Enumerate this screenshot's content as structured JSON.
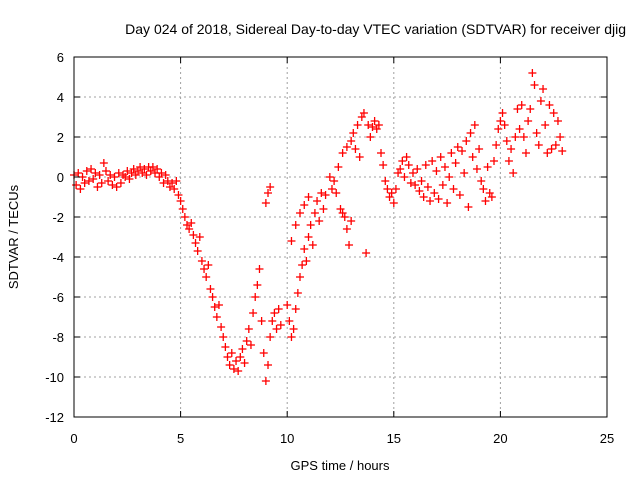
{
  "chart_data": {
    "type": "scatter",
    "title": "Day 024 of 2018, Sidereal Day-to-day VTEC variation (SDTVAR) for receiver djig",
    "xlabel": "GPS time / hours",
    "ylabel": "SDTVAR / TECUs",
    "xlim": [
      0,
      25
    ],
    "ylim": [
      -12,
      6
    ],
    "xticks": [
      0,
      5,
      10,
      15,
      20,
      25
    ],
    "yticks": [
      -12,
      -10,
      -8,
      -6,
      -4,
      -2,
      0,
      2,
      4,
      6
    ],
    "grid": true,
    "marker": "+",
    "series": [
      {
        "color": "#ff0000",
        "points": [
          [
            0.0,
            0.1
          ],
          [
            0.1,
            -0.4
          ],
          [
            0.2,
            0.2
          ],
          [
            0.3,
            -0.6
          ],
          [
            0.4,
            0.0
          ],
          [
            0.5,
            -0.3
          ],
          [
            0.6,
            0.3
          ],
          [
            0.7,
            -0.2
          ],
          [
            0.8,
            0.4
          ],
          [
            0.9,
            -0.1
          ],
          [
            1.0,
            0.2
          ],
          [
            1.1,
            -0.5
          ],
          [
            1.2,
            0.1
          ],
          [
            1.3,
            -0.3
          ],
          [
            1.4,
            0.7
          ],
          [
            1.5,
            0.3
          ],
          [
            1.6,
            -0.2
          ],
          [
            1.7,
            0.1
          ],
          [
            1.8,
            -0.4
          ],
          [
            1.9,
            0.0
          ],
          [
            2.0,
            -0.5
          ],
          [
            2.1,
            0.2
          ],
          [
            2.2,
            -0.3
          ],
          [
            2.3,
            0.1
          ],
          [
            2.4,
            0.0
          ],
          [
            2.5,
            0.3
          ],
          [
            2.6,
            -0.1
          ],
          [
            2.7,
            0.2
          ],
          [
            2.8,
            0.4
          ],
          [
            2.9,
            0.1
          ],
          [
            3.0,
            0.3
          ],
          [
            3.1,
            0.5
          ],
          [
            3.2,
            0.2
          ],
          [
            3.3,
            0.4
          ],
          [
            3.4,
            0.1
          ],
          [
            3.5,
            0.5
          ],
          [
            3.6,
            0.3
          ],
          [
            3.7,
            0.5
          ],
          [
            3.8,
            0.2
          ],
          [
            3.9,
            0.4
          ],
          [
            4.0,
            0.0
          ],
          [
            4.1,
            0.2
          ],
          [
            4.2,
            -0.3
          ],
          [
            4.3,
            0.1
          ],
          [
            4.4,
            -0.2
          ],
          [
            4.5,
            -0.5
          ],
          [
            4.6,
            -0.3
          ],
          [
            4.7,
            -0.6
          ],
          [
            4.8,
            -0.2
          ],
          [
            4.9,
            -0.9
          ],
          [
            5.0,
            -1.2
          ],
          [
            5.1,
            -1.6
          ],
          [
            5.2,
            -2.0
          ],
          [
            5.3,
            -2.4
          ],
          [
            5.4,
            -2.6
          ],
          [
            5.5,
            -2.3
          ],
          [
            5.6,
            -2.9
          ],
          [
            5.7,
            -3.3
          ],
          [
            5.8,
            -3.7
          ],
          [
            5.9,
            -3.0
          ],
          [
            6.0,
            -4.2
          ],
          [
            6.1,
            -4.6
          ],
          [
            6.2,
            -5.0
          ],
          [
            6.3,
            -4.4
          ],
          [
            6.4,
            -5.6
          ],
          [
            6.5,
            -6.0
          ],
          [
            6.6,
            -6.5
          ],
          [
            6.7,
            -7.0
          ],
          [
            6.8,
            -6.4
          ],
          [
            6.9,
            -7.5
          ],
          [
            7.0,
            -8.0
          ],
          [
            7.1,
            -8.5
          ],
          [
            7.2,
            -9.0
          ],
          [
            7.3,
            -9.4
          ],
          [
            7.4,
            -8.8
          ],
          [
            7.5,
            -9.6
          ],
          [
            7.6,
            -9.2
          ],
          [
            7.7,
            -9.7
          ],
          [
            7.8,
            -9.0
          ],
          [
            7.9,
            -8.6
          ],
          [
            8.0,
            -9.3
          ],
          [
            8.1,
            -8.2
          ],
          [
            8.2,
            -7.6
          ],
          [
            8.3,
            -8.4
          ],
          [
            8.4,
            -6.8
          ],
          [
            8.5,
            -6.0
          ],
          [
            8.6,
            -5.4
          ],
          [
            8.7,
            -4.6
          ],
          [
            8.8,
            -7.2
          ],
          [
            8.9,
            -8.8
          ],
          [
            9.0,
            -10.2
          ],
          [
            9.1,
            -9.4
          ],
          [
            9.2,
            -8.0
          ],
          [
            9.3,
            -7.2
          ],
          [
            9.4,
            -6.8
          ],
          [
            9.5,
            -7.6
          ],
          [
            9.6,
            -6.6
          ],
          [
            9.7,
            -7.4
          ],
          [
            9.0,
            -1.3
          ],
          [
            9.1,
            -0.8
          ],
          [
            9.2,
            -0.5
          ],
          [
            10.0,
            -6.4
          ],
          [
            10.1,
            -7.2
          ],
          [
            10.2,
            -8.0
          ],
          [
            10.3,
            -7.6
          ],
          [
            10.4,
            -6.6
          ],
          [
            10.5,
            -5.8
          ],
          [
            10.6,
            -5.0
          ],
          [
            10.7,
            -4.4
          ],
          [
            10.8,
            -3.6
          ],
          [
            10.9,
            -4.2
          ],
          [
            11.0,
            -3.0
          ],
          [
            11.1,
            -2.4
          ],
          [
            11.2,
            -3.4
          ],
          [
            11.3,
            -1.8
          ],
          [
            11.4,
            -1.2
          ],
          [
            11.5,
            -2.2
          ],
          [
            11.6,
            -0.8
          ],
          [
            11.7,
            -1.6
          ],
          [
            11.8,
            -0.9
          ],
          [
            10.2,
            -3.2
          ],
          [
            10.4,
            -2.4
          ],
          [
            10.6,
            -1.8
          ],
          [
            10.8,
            -1.4
          ],
          [
            11.0,
            -1.0
          ],
          [
            12.0,
            0.0
          ],
          [
            12.1,
            -0.6
          ],
          [
            12.2,
            -0.2
          ],
          [
            12.3,
            -0.8
          ],
          [
            12.4,
            0.5
          ],
          [
            12.5,
            -1.6
          ],
          [
            12.6,
            -1.8
          ],
          [
            12.7,
            -2.0
          ],
          [
            12.8,
            -2.6
          ],
          [
            12.9,
            -3.4
          ],
          [
            13.0,
            -2.2
          ],
          [
            12.6,
            1.2
          ],
          [
            12.8,
            1.5
          ],
          [
            13.0,
            1.8
          ],
          [
            13.1,
            2.2
          ],
          [
            13.2,
            1.4
          ],
          [
            13.3,
            2.6
          ],
          [
            13.4,
            1.0
          ],
          [
            13.5,
            3.0
          ],
          [
            13.6,
            3.2
          ],
          [
            13.7,
            -3.8
          ],
          [
            13.8,
            2.6
          ],
          [
            13.9,
            2.0
          ],
          [
            14.0,
            2.5
          ],
          [
            14.1,
            2.8
          ],
          [
            14.2,
            2.4
          ],
          [
            14.3,
            2.6
          ],
          [
            14.4,
            1.2
          ],
          [
            14.5,
            0.6
          ],
          [
            14.6,
            -0.2
          ],
          [
            14.7,
            -0.6
          ],
          [
            14.8,
            -1.0
          ],
          [
            14.9,
            -0.8
          ],
          [
            15.0,
            -1.3
          ],
          [
            15.1,
            -0.6
          ],
          [
            15.2,
            0.2
          ],
          [
            15.3,
            0.4
          ],
          [
            15.4,
            0.8
          ],
          [
            15.5,
            0.0
          ],
          [
            15.6,
            1.0
          ],
          [
            15.7,
            0.6
          ],
          [
            15.8,
            -0.3
          ],
          [
            15.9,
            0.2
          ],
          [
            16.0,
            -0.4
          ],
          [
            16.1,
            0.4
          ],
          [
            16.2,
            -0.7
          ],
          [
            16.3,
            -0.2
          ],
          [
            16.4,
            -1.0
          ],
          [
            16.5,
            0.6
          ],
          [
            16.6,
            -0.5
          ],
          [
            16.7,
            -1.2
          ],
          [
            16.8,
            0.8
          ],
          [
            16.9,
            -0.8
          ],
          [
            17.0,
            0.3
          ],
          [
            17.1,
            -1.1
          ],
          [
            17.2,
            1.0
          ],
          [
            17.3,
            -0.4
          ],
          [
            17.4,
            0.5
          ],
          [
            17.5,
            -1.3
          ],
          [
            17.6,
            0.0
          ],
          [
            17.7,
            1.2
          ],
          [
            17.8,
            -0.6
          ],
          [
            17.9,
            0.7
          ],
          [
            18.0,
            1.5
          ],
          [
            18.1,
            -0.9
          ],
          [
            18.2,
            1.3
          ],
          [
            18.3,
            0.2
          ],
          [
            18.4,
            1.8
          ],
          [
            18.5,
            -1.5
          ],
          [
            18.6,
            2.2
          ],
          [
            18.7,
            1.0
          ],
          [
            18.8,
            2.6
          ],
          [
            18.9,
            0.4
          ],
          [
            19.0,
            1.4
          ],
          [
            19.1,
            -0.2
          ],
          [
            19.2,
            -0.6
          ],
          [
            19.3,
            -1.2
          ],
          [
            19.4,
            0.5
          ],
          [
            19.5,
            -0.8
          ],
          [
            19.6,
            -1.0
          ],
          [
            19.7,
            0.8
          ],
          [
            19.8,
            1.6
          ],
          [
            19.9,
            2.4
          ],
          [
            20.0,
            2.8
          ],
          [
            20.1,
            3.2
          ],
          [
            20.2,
            2.6
          ],
          [
            20.3,
            1.8
          ],
          [
            20.4,
            0.8
          ],
          [
            20.5,
            1.4
          ],
          [
            20.6,
            0.2
          ],
          [
            20.7,
            2.0
          ],
          [
            20.8,
            3.4
          ],
          [
            20.9,
            2.4
          ],
          [
            21.0,
            3.6
          ],
          [
            21.1,
            2.0
          ],
          [
            21.2,
            1.2
          ],
          [
            21.3,
            2.8
          ],
          [
            21.4,
            3.4
          ],
          [
            21.5,
            5.2
          ],
          [
            21.6,
            4.6
          ],
          [
            21.7,
            2.2
          ],
          [
            21.8,
            1.6
          ],
          [
            21.9,
            3.8
          ],
          [
            22.0,
            4.4
          ],
          [
            22.1,
            2.6
          ],
          [
            22.2,
            1.2
          ],
          [
            22.3,
            3.6
          ],
          [
            22.4,
            1.4
          ],
          [
            22.5,
            3.2
          ],
          [
            22.6,
            1.6
          ],
          [
            22.7,
            2.8
          ],
          [
            22.8,
            2.0
          ],
          [
            22.9,
            1.3
          ]
        ]
      }
    ]
  }
}
